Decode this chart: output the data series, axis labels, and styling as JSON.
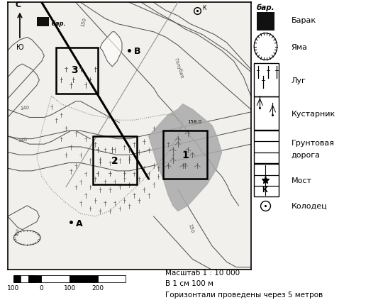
{
  "map_bg": "#f2f0ec",
  "scale_text1": "Масштаб 1 : 10 000",
  "scale_text2": "В 1 см 100 м",
  "scale_text3": "Горизонтали проведены через 5 метров",
  "contour_color": "#555555",
  "road_color": "#111111",
  "fg": "#111111",
  "legend_items": [
    "бар.",
    "Барак",
    "Яма",
    "Луг",
    "Кустарник",
    "Грунтовая\nдорога",
    "Мост",
    "Колодец"
  ]
}
